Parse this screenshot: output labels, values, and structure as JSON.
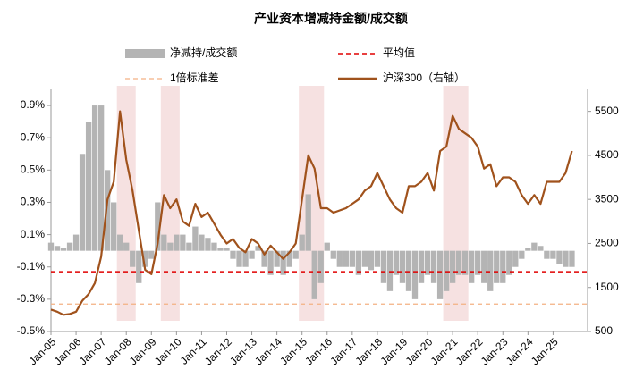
{
  "chart_data": {
    "type": "bar_line",
    "title": "产业资本增减持金额/成交额",
    "categories": [
      "Jan-05",
      null,
      null,
      null,
      "Jan-06",
      null,
      null,
      null,
      "Jan-07",
      null,
      null,
      null,
      "Jan-08",
      null,
      null,
      null,
      "Jan-09",
      null,
      null,
      null,
      "Jan-10",
      null,
      null,
      null,
      "Jan-11",
      null,
      null,
      null,
      "Jan-12",
      null,
      null,
      null,
      "Jan-13",
      null,
      null,
      null,
      "Jan-14",
      null,
      null,
      null,
      "Jan-15",
      null,
      null,
      null,
      "Jan-16",
      null,
      null,
      null,
      "Jan-17",
      null,
      null,
      null,
      "Jan-18",
      null,
      null,
      null,
      "Jan-19",
      null,
      null,
      null,
      "Jan-20",
      null,
      null,
      null,
      "Jan-21",
      null,
      null,
      null,
      "Jan-22",
      null,
      null,
      null,
      "Jan-23",
      null,
      null,
      null,
      "Jan-24",
      null,
      null,
      null,
      "Jan-25",
      null,
      null,
      null
    ],
    "series": [
      {
        "name": "净减持/成交额",
        "type": "bar",
        "color": "#b4b4b4",
        "axis": "y",
        "values": [
          0.05,
          0.03,
          0.02,
          0.05,
          0.1,
          0.6,
          0.8,
          0.9,
          0.9,
          0.5,
          0.3,
          0.1,
          0.05,
          -0.1,
          -0.2,
          -0.1,
          -0.05,
          0.3,
          0.1,
          0.05,
          0.1,
          0.1,
          0.05,
          0.15,
          0.1,
          0.08,
          0.05,
          0.02,
          0.02,
          -0.05,
          -0.1,
          -0.1,
          -0.05,
          0.03,
          -0.1,
          -0.15,
          -0.1,
          -0.15,
          -0.1,
          -0.05,
          0.1,
          0.35,
          -0.3,
          -0.2,
          0.05,
          -0.05,
          -0.1,
          -0.1,
          -0.1,
          -0.15,
          -0.1,
          -0.12,
          -0.1,
          -0.2,
          -0.25,
          -0.15,
          -0.2,
          -0.25,
          -0.3,
          -0.2,
          -0.15,
          -0.2,
          -0.3,
          -0.25,
          -0.2,
          -0.15,
          -0.15,
          -0.2,
          -0.15,
          -0.2,
          -0.25,
          -0.2,
          -0.2,
          -0.15,
          -0.1,
          -0.05,
          0.02,
          0.05,
          0.03,
          -0.05,
          -0.05,
          -0.08,
          -0.1,
          -0.1
        ]
      },
      {
        "name": "沪深300（右轴）",
        "type": "line",
        "color": "#a0521c",
        "axis": "y2",
        "values": [
          1000,
          950,
          880,
          900,
          950,
          1200,
          1350,
          1600,
          2200,
          3500,
          3900,
          5500,
          4400,
          3700,
          2800,
          1900,
          1800,
          2500,
          3600,
          3300,
          3500,
          3000,
          2900,
          3400,
          3100,
          3200,
          2950,
          2700,
          2500,
          2600,
          2400,
          2300,
          2600,
          2500,
          2250,
          2450,
          2300,
          2150,
          2300,
          2500,
          3500,
          4500,
          4200,
          3300,
          3300,
          3200,
          3250,
          3300,
          3400,
          3500,
          3700,
          3800,
          4100,
          3800,
          3500,
          3300,
          3200,
          3800,
          3800,
          3900,
          4100,
          3700,
          4600,
          4700,
          5400,
          5100,
          5000,
          4900,
          4700,
          4200,
          4300,
          3800,
          4000,
          4000,
          3900,
          3600,
          3400,
          3600,
          3400,
          3900,
          3900,
          3900,
          4100,
          4600
        ]
      }
    ],
    "reference_lines": [
      {
        "name": "平均值",
        "value": -0.13,
        "color": "#e00000"
      },
      {
        "name": "1倍标准差",
        "value": -0.33,
        "color": "#f4b183"
      }
    ],
    "highlight_ranges": [
      [
        "Oct-07",
        "Apr-08"
      ],
      [
        "Jul-09",
        "Jan-10"
      ],
      [
        "Jan-15",
        "Oct-15"
      ],
      [
        "Oct-20",
        "Jul-21"
      ]
    ],
    "highlight_color": "#f6e1e1",
    "ylim": [
      -0.5,
      1.0
    ],
    "yticks": [
      {
        "value": -0.5,
        "label": "-0.5%"
      },
      {
        "value": -0.3,
        "label": "-0.3%"
      },
      {
        "value": -0.1,
        "label": "-0.1%"
      },
      {
        "value": 0.1,
        "label": "0.1%"
      },
      {
        "value": 0.3,
        "label": "0.3%"
      },
      {
        "value": 0.5,
        "label": "0.5%"
      },
      {
        "value": 0.7,
        "label": "0.7%"
      },
      {
        "value": 0.9,
        "label": "0.9%"
      }
    ],
    "y2lim": [
      500,
      6000
    ],
    "y2ticks": [
      500,
      1500,
      2500,
      3500,
      4500,
      5500
    ]
  }
}
